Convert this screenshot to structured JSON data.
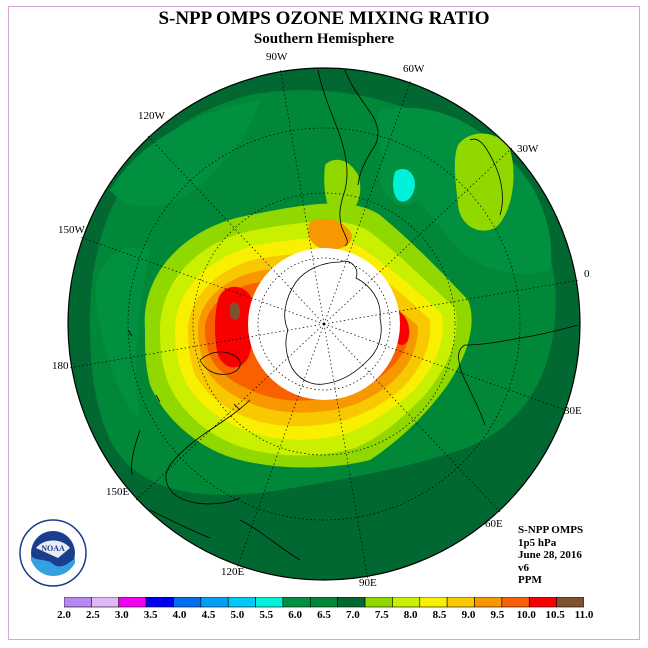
{
  "title": "S-NPP OMPS OZONE MIXING RATIO",
  "subtitle": "Southern Hemisphere",
  "longitude_labels": [
    "90W",
    "60W",
    "30W",
    "120W",
    "150W",
    "0",
    "180",
    "30E",
    "150E",
    "60E",
    "120E",
    "90E"
  ],
  "info": {
    "instrument": "S-NPP OMPS",
    "level": "1p5 hPa",
    "date": "June 28, 2016",
    "version": "v6",
    "units": "PPM"
  },
  "colorbar": {
    "ticks": [
      "2.0",
      "2.5",
      "3.0",
      "3.5",
      "4.0",
      "4.5",
      "5.0",
      "5.5",
      "6.0",
      "6.5",
      "7.0",
      "7.5",
      "8.0",
      "8.5",
      "9.0",
      "9.5",
      "10.0",
      "10.5",
      "11.0"
    ],
    "colors": [
      "#b888f0",
      "#e0b8f8",
      "#f000f0",
      "#0000f0",
      "#0070f0",
      "#00a0f8",
      "#00c8f8",
      "#00f0d8",
      "#009040",
      "#008838",
      "#006830",
      "#90d800",
      "#c8f000",
      "#f8f000",
      "#f8c800",
      "#f89800",
      "#f86000",
      "#f80000",
      "#805030"
    ]
  },
  "logo": {
    "text": "NOAA",
    "ring_text": "NATIONAL OCEANIC AND ATMOSPHERIC ADMINISTRATION · U.S. DEPARTMENT OF COMMERCE"
  }
}
